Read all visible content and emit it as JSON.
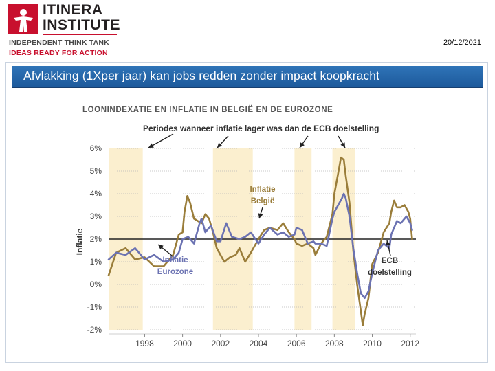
{
  "header": {
    "logo_line1": "ITINERA",
    "logo_line2": "INSTITUTE",
    "tagline1": "INDEPENDENT THINK TANK",
    "tagline2": "IDEAS READY FOR ACTION",
    "date": "20/12/2021"
  },
  "slide": {
    "title": "Afvlakking (1Xper jaar) kan jobs redden zonder impact koopkracht"
  },
  "colors": {
    "brand_red": "#c8102e",
    "title_bar": "#2f74b8",
    "shade": "#fbefcf",
    "belgium_line": "#9a7d3a",
    "eurozone_line": "#6b72b2",
    "target_line": "#222222"
  },
  "chart_data": {
    "type": "line",
    "title": "LOONINDEXATIE EN INFLATIE IN BELGIË EN DE EUROZONE",
    "ylabel": "Inflatie",
    "xlabel": "",
    "ylim": [
      -2,
      6
    ],
    "xlim": [
      1996.1,
      2012.3
    ],
    "yticks": [
      -2,
      -1,
      0,
      1,
      2,
      3,
      4,
      5,
      6
    ],
    "ytick_labels": [
      "-2%",
      "-1%",
      "0%",
      "1%",
      "2%",
      "3%",
      "4%",
      "5%",
      "6%"
    ],
    "xticks": [
      1998,
      2000,
      2002,
      2004,
      2006,
      2008,
      2010,
      2012
    ],
    "xtick_labels": [
      "1998",
      "2000",
      "2002",
      "2004",
      "2006",
      "2008",
      "2010",
      "2012"
    ],
    "shaded_periods": [
      [
        1996.1,
        1997.9
      ],
      [
        2001.6,
        2003.7
      ],
      [
        2005.9,
        2006.8
      ],
      [
        2007.9,
        2009.1
      ]
    ],
    "shaded_note": "Periodes wanneer inflatie lager was dan de ECB doelstelling",
    "target": {
      "name": "ECB doelstelling",
      "value": 2.0
    },
    "series": [
      {
        "name": "Inflatie België",
        "x": [
          1996.1,
          1996.5,
          1997,
          1997.5,
          1998,
          1998.5,
          1999,
          1999.5,
          1999.8,
          2000,
          2000.1,
          2000.25,
          2000.4,
          2000.6,
          2000.8,
          2001,
          2001.2,
          2001.4,
          2001.6,
          2001.8,
          2002,
          2002.2,
          2002.5,
          2002.8,
          2003,
          2003.3,
          2003.6,
          2004,
          2004.3,
          2004.6,
          2005,
          2005.3,
          2005.6,
          2005.9,
          2006,
          2006.3,
          2006.6,
          2006.9,
          2007,
          2007.3,
          2007.6,
          2007.9,
          2008,
          2008.2,
          2008.35,
          2008.5,
          2008.6,
          2008.8,
          2009,
          2009.2,
          2009.4,
          2009.5,
          2009.6,
          2009.8,
          2010,
          2010.3,
          2010.6,
          2010.9,
          2011,
          2011.15,
          2011.3,
          2011.5,
          2011.7,
          2011.9,
          2012,
          2012.1
        ],
        "values": [
          0.4,
          1.4,
          1.6,
          1.1,
          1.2,
          0.8,
          0.8,
          1.3,
          2.2,
          2.3,
          3.2,
          3.9,
          3.6,
          2.9,
          2.8,
          2.7,
          3.1,
          2.9,
          2.3,
          1.6,
          1.3,
          1.0,
          1.2,
          1.3,
          1.6,
          1.0,
          1.4,
          2.0,
          2.4,
          2.5,
          2.4,
          2.7,
          2.3,
          2.0,
          1.8,
          1.7,
          1.8,
          1.6,
          1.3,
          1.8,
          2.1,
          3.1,
          4.0,
          4.9,
          5.6,
          5.5,
          4.8,
          3.6,
          1.5,
          0.0,
          -1.2,
          -1.8,
          -1.3,
          -0.6,
          0.9,
          1.4,
          2.3,
          2.7,
          3.2,
          3.7,
          3.4,
          3.4,
          3.5,
          3.2,
          2.9,
          2.0
        ]
      },
      {
        "name": "Inflatie Eurozone",
        "x": [
          1996.1,
          1996.5,
          1997,
          1997.5,
          1998,
          1998.5,
          1999,
          1999.5,
          1999.8,
          2000,
          2000.3,
          2000.6,
          2000.9,
          2001,
          2001.2,
          2001.5,
          2001.8,
          2002,
          2002.3,
          2002.6,
          2003,
          2003.3,
          2003.6,
          2004,
          2004.3,
          2004.6,
          2005,
          2005.3,
          2005.6,
          2005.9,
          2006,
          2006.3,
          2006.6,
          2006.9,
          2007,
          2007.3,
          2007.6,
          2007.9,
          2008,
          2008.2,
          2008.4,
          2008.5,
          2008.6,
          2008.8,
          2009,
          2009.2,
          2009.4,
          2009.6,
          2009.8,
          2010,
          2010.3,
          2010.6,
          2010.9,
          2011,
          2011.3,
          2011.5,
          2011.8,
          2012,
          2012.1
        ],
        "values": [
          1.1,
          1.4,
          1.3,
          1.6,
          1.1,
          1.3,
          1.0,
          1.1,
          1.4,
          2.0,
          2.1,
          1.8,
          2.7,
          2.9,
          2.3,
          2.6,
          1.9,
          1.9,
          2.7,
          2.1,
          2.0,
          2.1,
          2.3,
          1.8,
          2.2,
          2.5,
          2.2,
          2.3,
          2.1,
          2.2,
          2.5,
          2.4,
          1.8,
          1.9,
          1.8,
          1.8,
          1.7,
          2.9,
          3.2,
          3.5,
          3.8,
          4.0,
          3.8,
          3.0,
          1.6,
          0.5,
          -0.4,
          -0.6,
          -0.3,
          0.5,
          1.5,
          1.8,
          1.6,
          2.2,
          2.8,
          2.7,
          3.0,
          2.7,
          2.4
        ]
      }
    ],
    "annotations": {
      "belgium_label": [
        "Inflatie",
        "België"
      ],
      "eurozone_label": [
        "Inflatie",
        "Eurozone"
      ],
      "ecb_label": [
        "ECB",
        "doelstelling"
      ]
    }
  }
}
